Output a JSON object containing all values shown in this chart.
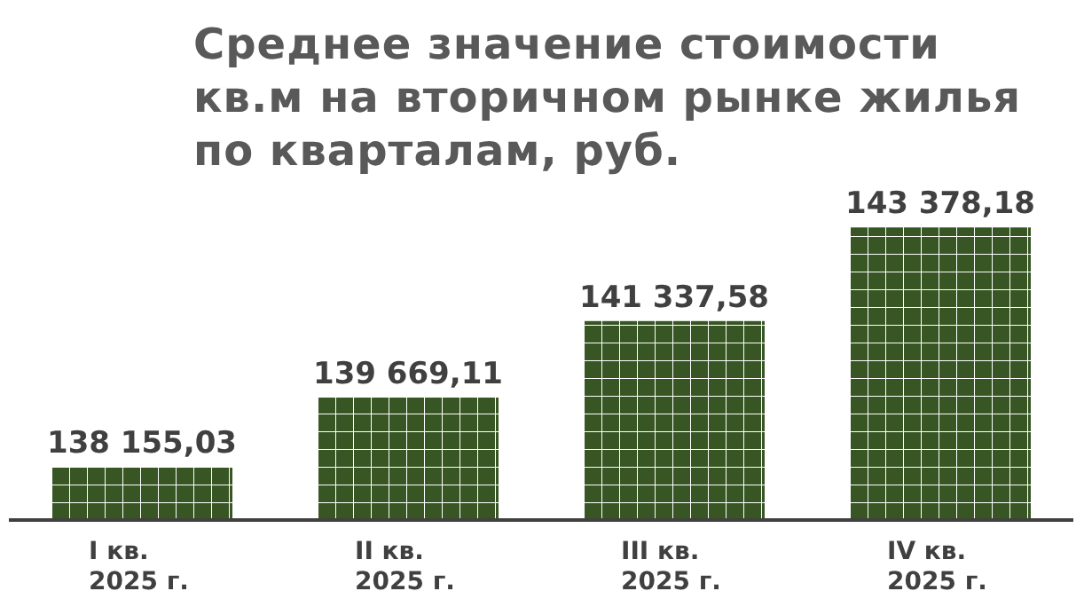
{
  "chart_data": {
    "type": "bar",
    "title": "Среднее значение стоимости\nкв.м на вторичном рынке жилья\nпо кварталам, руб.",
    "categories": [
      "I кв.\n2025 г.",
      "II кв.\n2025 г.",
      "III кв.\n2025 г.",
      "IV кв.\n2025 г."
    ],
    "values": [
      138155.03,
      139669.11,
      141337.58,
      143378.18
    ],
    "value_labels": [
      "138 155,03",
      "139 669,11",
      "141 337,58",
      "143 378,18"
    ],
    "color": "#375623",
    "ylim": [
      137000,
      143500
    ]
  }
}
